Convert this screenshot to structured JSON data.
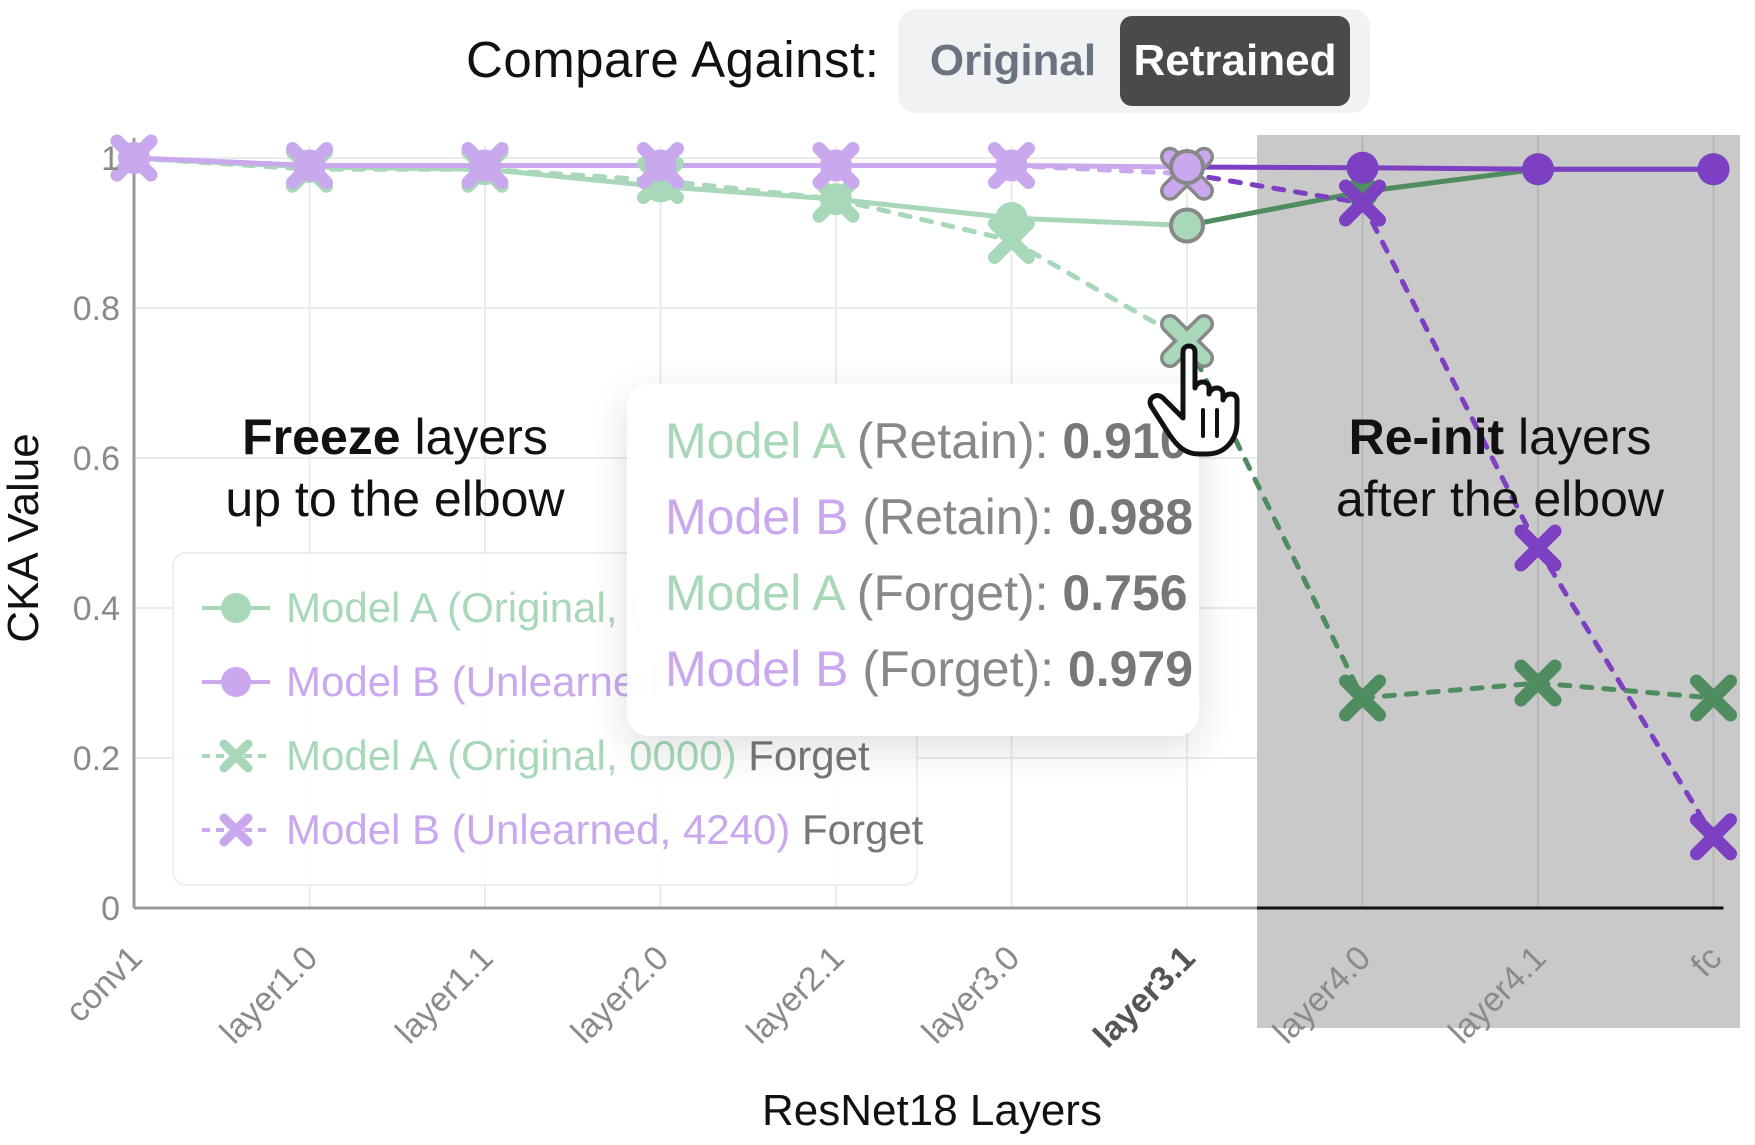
{
  "toggle": {
    "label": "Compare Against:",
    "options": [
      "Original",
      "Retrained"
    ],
    "selected": "Retrained"
  },
  "annotations": {
    "left_bold": "Freeze",
    "left_rest": " layers",
    "left_line2": "up to the elbow",
    "right_bold": "Re-init",
    "right_rest": " layers",
    "right_line2": "after the elbow"
  },
  "tooltip": {
    "rows": [
      {
        "model": "Model A",
        "category": " (Retain): ",
        "value": "0.910",
        "color": "#a8d8b9"
      },
      {
        "model": "Model B",
        "category": " (Retain): ",
        "value": "0.988",
        "color": "#c9a8ee"
      },
      {
        "model": "Model A",
        "category": " (Forget): ",
        "value": "0.756",
        "color": "#a8d8b9"
      },
      {
        "model": "Model B",
        "category": " (Forget): ",
        "value": "0.979",
        "color": "#c9a8ee"
      }
    ]
  },
  "legend": {
    "items": [
      {
        "name": "Model A (Original, (",
        "suffix": "",
        "symbol": "circle",
        "style": "solid",
        "color": "#a8d8b9"
      },
      {
        "name": "Model B (Unlearned",
        "suffix": "",
        "symbol": "circle",
        "style": "solid",
        "color": "#c9a8ee"
      },
      {
        "name": "Model A (Original, 0000)",
        "suffix": " Forget",
        "symbol": "cross",
        "style": "dashed",
        "color": "#a8d8b9"
      },
      {
        "name": "Model B (Unlearned, 4240)",
        "suffix": " Forget",
        "symbol": "cross",
        "style": "dashed",
        "color": "#c9a8ee"
      }
    ]
  },
  "chart_data": {
    "type": "line",
    "xlabel": "ResNet18 Layers",
    "ylabel": "CKA Value",
    "categories": [
      "conv1",
      "layer1.0",
      "layer1.1",
      "layer2.0",
      "layer2.1",
      "layer3.0",
      "layer3.1",
      "layer4.0",
      "layer4.1",
      "fc"
    ],
    "highlight_category": "layer3.1",
    "ylim": [
      0,
      1
    ],
    "yticks": [
      0,
      0.2,
      0.4,
      0.6,
      0.8,
      1
    ],
    "ytick_labels": [
      "0",
      "0.2",
      "0.4",
      "0.6",
      "0.8",
      "1"
    ],
    "grid": true,
    "shaded_region_from": "layer3.1",
    "split_index": 6,
    "series": [
      {
        "name": "Model A (Original, 0000) Retain",
        "style": "solid",
        "marker": "circle",
        "light_color": "#a8d8b9",
        "dark_color": "#4f8d61",
        "values": [
          1.0,
          0.988,
          0.985,
          0.962,
          0.945,
          0.92,
          0.91,
          0.955,
          0.985,
          0.985
        ]
      },
      {
        "name": "Model B (Unlearned, 4240) Retain",
        "style": "solid",
        "marker": "circle",
        "light_color": "#c9a8ee",
        "dark_color": "#7d40c2",
        "values": [
          1.0,
          0.99,
          0.99,
          0.99,
          0.99,
          0.99,
          0.988,
          0.987,
          0.985,
          0.985
        ]
      },
      {
        "name": "Model A (Original, 0000) Forget",
        "style": "dashed",
        "marker": "cross",
        "light_color": "#a8d8b9",
        "dark_color": "#4f8d61",
        "values": [
          1.0,
          0.985,
          0.985,
          0.97,
          0.945,
          0.89,
          0.756,
          0.28,
          0.3,
          0.28
        ]
      },
      {
        "name": "Model B (Unlearned, 4240) Forget",
        "style": "dashed",
        "marker": "cross",
        "light_color": "#c9a8ee",
        "dark_color": "#7d40c2",
        "values": [
          1.0,
          0.99,
          0.99,
          0.99,
          0.99,
          0.99,
          0.979,
          0.94,
          0.48,
          0.095
        ]
      }
    ]
  }
}
